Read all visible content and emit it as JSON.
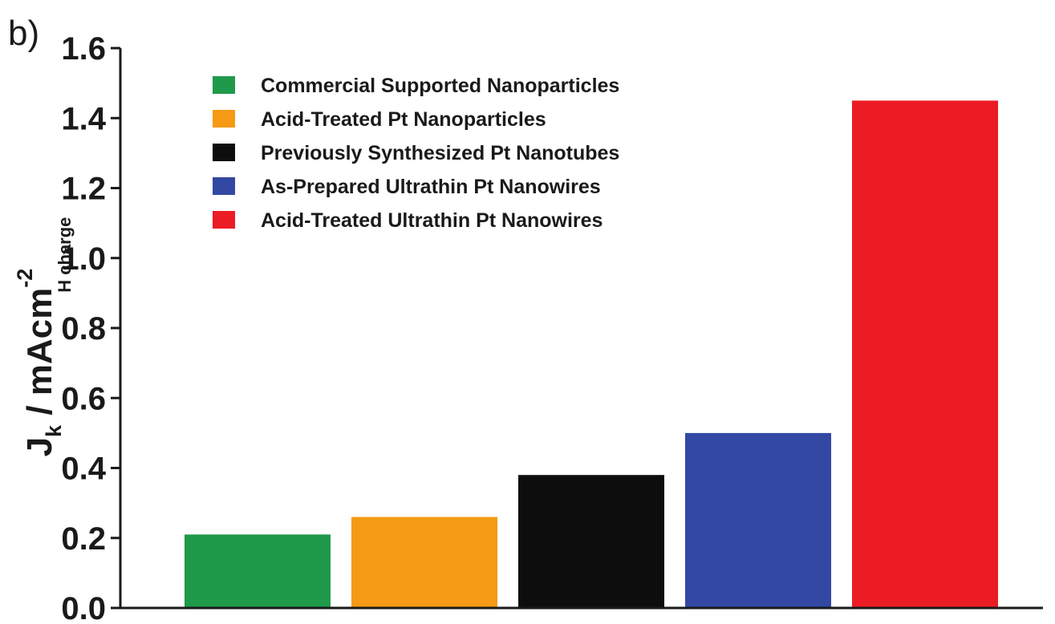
{
  "panel_label": "b)",
  "chart_data": {
    "type": "bar",
    "ylabel": {
      "main": "J",
      "sub": "k",
      "mid": " / mAcm",
      "sup": "-2",
      "sub2": "H charge"
    },
    "ylim": [
      0.0,
      1.6
    ],
    "yticks": [
      "0.0",
      "0.2",
      "0.4",
      "0.6",
      "0.8",
      "1.0",
      "1.2",
      "1.4",
      "1.6"
    ],
    "categories": [
      "Commercial Supported  Nanoparticles",
      "Acid-Treated Pt Nanoparticles",
      "Previously Synthesized Pt Nanotubes",
      "As-Prepared Ultrathin Pt Nanowires",
      "Acid-Treated Ultrathin Pt Nanowires"
    ],
    "values": [
      0.21,
      0.26,
      0.38,
      0.5,
      1.45
    ],
    "colors": [
      "#1f9a4a",
      "#f59a14",
      "#0d0d0d",
      "#3348a3",
      "#ec1c24"
    ],
    "legend_position": "top-left",
    "grid": false,
    "xlabel": ""
  }
}
